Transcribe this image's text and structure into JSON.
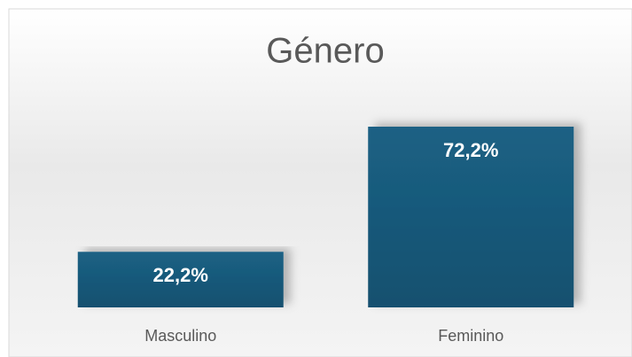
{
  "chart_data": {
    "type": "bar",
    "title": "Género",
    "categories": [
      "Masculino",
      "Feminino"
    ],
    "values": [
      22.2,
      72.2
    ],
    "value_labels": [
      "22,2%",
      "72,2%"
    ],
    "color": "#185a7d"
  }
}
